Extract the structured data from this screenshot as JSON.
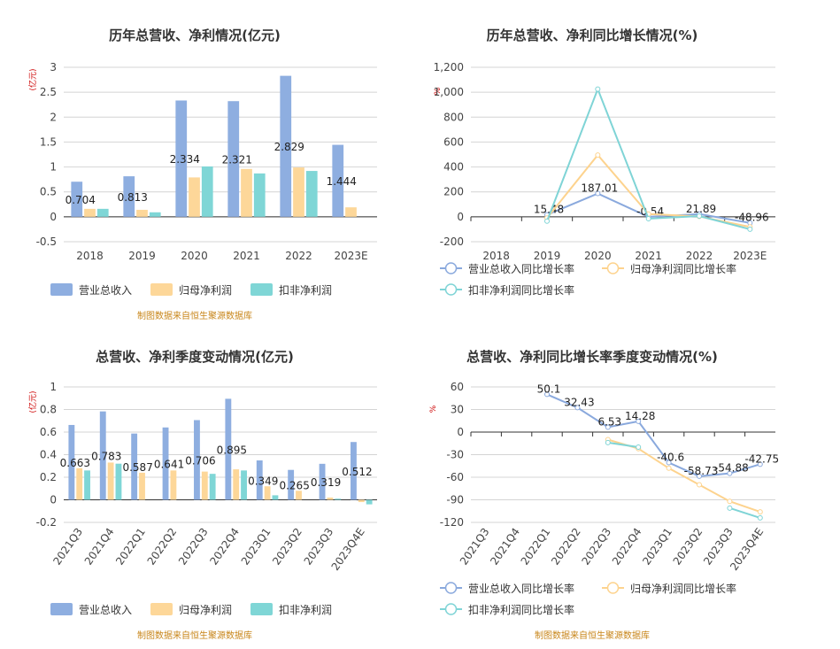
{
  "colors": {
    "revenue": "#8eaee0",
    "parent_profit": "#fdd799",
    "deducted_profit": "#7fd6d6",
    "axis_text": "#444444",
    "unit_text": "#cc0000",
    "source_text": "#c8861a",
    "grid": "#d4d4d4",
    "title_text": "#333333"
  },
  "chart_data": [
    {
      "id": "annual-bar",
      "type": "bar",
      "title": "历年总营收、净利情况(亿元)",
      "unit": "(亿元)",
      "source": "制图数据来自恒生聚源数据库",
      "categories": [
        "2018",
        "2019",
        "2020",
        "2021",
        "2022",
        "2023E"
      ],
      "ylim": [
        -0.5,
        3
      ],
      "yticks": [
        "-0.5",
        "0",
        "0.5",
        "1",
        "1.5",
        "2",
        "2.5",
        "3"
      ],
      "series": [
        {
          "name": "营业总收入",
          "values": [
            0.704,
            0.813,
            2.334,
            2.321,
            2.829,
            1.444
          ],
          "labels": [
            "0.704",
            "0.813",
            "2.334",
            "2.321",
            "2.829",
            "1.444"
          ]
        },
        {
          "name": "归母净利润",
          "values": [
            0.16,
            0.14,
            0.79,
            0.96,
            0.99,
            0.19
          ]
        },
        {
          "name": "扣非净利润",
          "values": [
            0.16,
            0.09,
            1.01,
            0.87,
            0.92,
            0
          ]
        }
      ]
    },
    {
      "id": "annual-line",
      "type": "line",
      "title": "历年总营收、净利同比增长情况(%)",
      "unit": "%",
      "source": "",
      "categories": [
        "2018",
        "2019",
        "2020",
        "2021",
        "2022",
        "2023E"
      ],
      "ylim": [
        -200,
        1200
      ],
      "yticks": [
        "-200",
        "0",
        "200",
        "400",
        "600",
        "800",
        "1,000",
        "1,200"
      ],
      "series": [
        {
          "name": "营业总收入同比增长率",
          "values": [
            null,
            15.48,
            187.01,
            -0.54,
            21.89,
            -48.96
          ],
          "labels": [
            null,
            "15.48",
            "187.01",
            "-0.54",
            "21.89",
            "-48.96"
          ]
        },
        {
          "name": "归母净利润同比增长率",
          "values": [
            null,
            -10,
            496,
            22,
            3,
            -81
          ]
        },
        {
          "name": "扣非净利润同比增长率",
          "values": [
            null,
            -35,
            1025,
            -15,
            6,
            -100
          ]
        }
      ]
    },
    {
      "id": "quarter-bar",
      "type": "bar",
      "title": "总营收、净利季度变动情况(亿元)",
      "unit": "(亿元)",
      "source": "制图数据来自恒生聚源数据库",
      "categories": [
        "2021Q3",
        "2021Q4",
        "2022Q1",
        "2022Q2",
        "2022Q3",
        "2022Q4",
        "2023Q1",
        "2023Q2",
        "2023Q3",
        "2023Q4E"
      ],
      "ylim": [
        -0.2,
        1
      ],
      "yticks": [
        "-0.2",
        "0",
        "0.2",
        "0.4",
        "0.6",
        "0.8",
        "1"
      ],
      "series": [
        {
          "name": "营业总收入",
          "values": [
            0.663,
            0.783,
            0.587,
            0.641,
            0.706,
            0.895,
            0.349,
            0.265,
            0.319,
            0.512
          ],
          "labels": [
            "0.663",
            "0.783",
            "0.587",
            "0.641",
            "0.706",
            "0.895",
            "0.349",
            "0.265",
            "0.319",
            "0.512"
          ]
        },
        {
          "name": "归母净利润",
          "values": [
            0.28,
            0.33,
            0.24,
            0.26,
            0.25,
            0.27,
            0.12,
            0.08,
            0.02,
            -0.02
          ]
        },
        {
          "name": "扣非净利润",
          "values": [
            0.26,
            0.32,
            0,
            0,
            0.23,
            0.26,
            0.04,
            0,
            0.01,
            -0.04
          ]
        }
      ]
    },
    {
      "id": "quarter-line",
      "type": "line",
      "title": "总营收、净利同比增长率季度变动情况(%)",
      "unit": "%",
      "source": "制图数据来自恒生聚源数据库",
      "categories": [
        "2021Q3",
        "2021Q4",
        "2022Q1",
        "2022Q2",
        "2022Q3",
        "2022Q4",
        "2023Q1",
        "2023Q2",
        "2023Q3",
        "2023Q4E"
      ],
      "ylim": [
        -120,
        60
      ],
      "yticks": [
        "-120",
        "-90",
        "-60",
        "-30",
        "0",
        "30",
        "60"
      ],
      "series": [
        {
          "name": "营业总收入同比增长率",
          "values": [
            null,
            null,
            50.1,
            32.43,
            6.53,
            14.28,
            -40.6,
            -58.73,
            -54.88,
            -42.75
          ],
          "labels": [
            null,
            null,
            "50.1",
            "32.43",
            "6.53",
            "14.28",
            "-40.6",
            "-58.73",
            "-54.88",
            "-42.75"
          ]
        },
        {
          "name": "归母净利润同比增长率",
          "values": [
            null,
            null,
            null,
            null,
            -10,
            -22,
            -48,
            -70,
            -92,
            -106
          ]
        },
        {
          "name": "扣非净利润同比增长率",
          "values": [
            null,
            null,
            null,
            null,
            -14,
            -20,
            null,
            null,
            -101,
            -114
          ]
        }
      ]
    }
  ]
}
